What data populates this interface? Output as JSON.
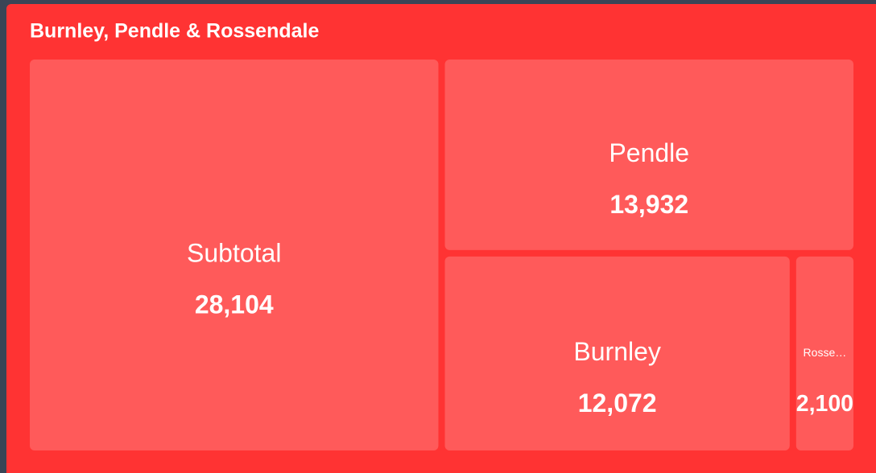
{
  "chart_data": {
    "type": "treemap",
    "title": "Burnley, Pendle & Rossendale",
    "categories": [
      "Subtotal",
      "Pendle",
      "Burnley",
      "Rosse…"
    ],
    "values": [
      28104,
      13932,
      12072,
      2100
    ],
    "value_labels": [
      "28,104",
      "13,932",
      "12,072",
      "2,100"
    ],
    "color": "#ff5a5a",
    "background": "#ff3333"
  }
}
